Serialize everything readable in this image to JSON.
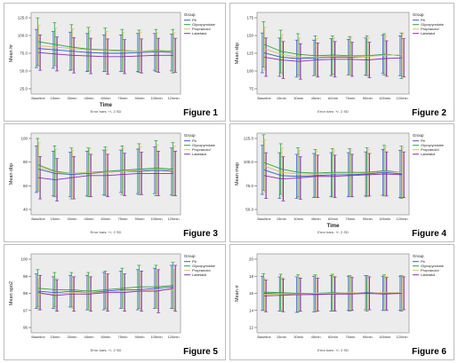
{
  "colors": {
    "plot_bg": "#ececec",
    "series": [
      "#3a5bc7",
      "#2f9e3a",
      "#d0c070",
      "#8a2fae"
    ],
    "errbar": "#7a2b9a"
  },
  "chart_data": [
    {
      "type": "line",
      "figure_label": "Figure 1",
      "ylabel": "Mean hr",
      "xlabel": "Time",
      "footer": "Error bars: +/- 2 SD",
      "legend_title": "Group",
      "legend": [
        "Pb",
        "Glycopyrrolate",
        "Propranolol",
        "Labetalol"
      ],
      "legend_placement": "right",
      "yticks": [
        "125.0",
        "100.0",
        "75.0",
        "50.0",
        "25.0"
      ],
      "ylim": [
        15,
        135
      ],
      "categories": [
        "Baseline",
        "15min",
        "30min",
        "45min",
        "60min",
        "75min",
        "90min",
        "105min",
        "120min"
      ],
      "series": [
        {
          "name": "Pb",
          "values": [
            82,
            80,
            78,
            76,
            75,
            75,
            76,
            77,
            76
          ],
          "err": [
            28,
            27,
            28,
            28,
            27,
            27,
            28,
            27,
            27
          ]
        },
        {
          "name": "Glycopyrrolate",
          "values": [
            92,
            88,
            84,
            81,
            80,
            79,
            78,
            79,
            78
          ],
          "err": [
            35,
            32,
            33,
            32,
            32,
            31,
            31,
            31,
            32
          ]
        },
        {
          "name": "Propranolol",
          "values": [
            86,
            84,
            82,
            80,
            79,
            78,
            78,
            78,
            77
          ],
          "err": [
            30,
            28,
            29,
            28,
            28,
            28,
            28,
            27,
            28
          ]
        },
        {
          "name": "Labetalol",
          "values": [
            76,
            74,
            72,
            71,
            70,
            70,
            71,
            72,
            72
          ],
          "err": [
            26,
            25,
            26,
            26,
            26,
            25,
            25,
            25,
            25
          ]
        }
      ]
    },
    {
      "type": "line",
      "figure_label": "Figure 2",
      "ylabel": "Mean sbp",
      "xlabel": "",
      "footer": "Error bars: +/- 2 SD",
      "legend_title": "Group",
      "legend": [
        "Pb",
        "Glycopyrrolate",
        "Propranolol",
        "Labetalol"
      ],
      "legend_placement": "right",
      "yticks": [
        "175",
        "150",
        "125",
        "100",
        "75"
      ],
      "ylim": [
        70,
        185
      ],
      "categories": [
        "Baseline",
        "15min",
        "30min",
        "45min",
        "60min",
        "75min",
        "90min",
        "105min",
        "120min"
      ],
      "series": [
        {
          "name": "Pb",
          "values": [
            128,
            122,
            120,
            121,
            122,
            122,
            123,
            126,
            124
          ],
          "err": [
            28,
            27,
            26,
            25,
            26,
            25,
            26,
            27,
            28
          ]
        },
        {
          "name": "Glycopyrrolate",
          "values": [
            140,
            130,
            126,
            124,
            125,
            124,
            124,
            126,
            124
          ],
          "err": [
            32,
            30,
            29,
            28,
            27,
            27,
            28,
            29,
            32
          ]
        },
        {
          "name": "Propranolol",
          "values": [
            134,
            126,
            122,
            122,
            123,
            123,
            123,
            125,
            125
          ],
          "err": [
            30,
            28,
            27,
            26,
            26,
            26,
            26,
            27,
            30
          ]
        },
        {
          "name": "Labetalol",
          "values": [
            122,
            118,
            116,
            118,
            119,
            119,
            118,
            120,
            121
          ],
          "err": [
            27,
            26,
            25,
            24,
            25,
            24,
            25,
            25,
            27
          ]
        }
      ]
    },
    {
      "type": "line",
      "figure_label": "Figure 3",
      "ylabel": "Mean dbp",
      "xlabel": "",
      "footer": "Error bars: +/- 2 SD",
      "legend_title": "Group",
      "legend": [
        "Pb",
        "Glycopyrrolate",
        "Propranolol",
        "Labetalol"
      ],
      "legend_placement": "right",
      "yticks": [
        "100",
        "80",
        "60",
        "40"
      ],
      "ylim": [
        35,
        112
      ],
      "categories": [
        "Baseline",
        "15min",
        "30min",
        "45min",
        "60min",
        "75min",
        "90min",
        "105min",
        "120min"
      ],
      "series": [
        {
          "name": "Pb",
          "values": [
            78,
            74,
            73,
            74,
            75,
            76,
            76,
            77,
            76
          ],
          "err": [
            22,
            21,
            21,
            21,
            21,
            20,
            21,
            22,
            22
          ]
        },
        {
          "name": "Glycopyrrolate",
          "values": [
            82,
            76,
            74,
            75,
            76,
            77,
            78,
            79,
            78
          ],
          "err": [
            25,
            24,
            24,
            23,
            23,
            23,
            24,
            26,
            25
          ]
        },
        {
          "name": "Propranolol",
          "values": [
            80,
            75,
            74,
            75,
            75,
            76,
            77,
            78,
            77
          ],
          "err": [
            23,
            22,
            22,
            22,
            22,
            22,
            22,
            23,
            23
          ]
        },
        {
          "name": "Labetalol",
          "values": [
            70,
            68,
            70,
            72,
            72,
            73,
            74,
            74,
            74
          ],
          "err": [
            20,
            20,
            20,
            20,
            20,
            20,
            20,
            21,
            21
          ]
        }
      ]
    },
    {
      "type": "line",
      "figure_label": "Figure 4",
      "ylabel": "Mean map",
      "xlabel": "Time",
      "footer": "Error bars: +/- 2 SD",
      "legend_title": "Group",
      "legend": [
        "Pb",
        "Glycopyrrolate",
        "Propranolol",
        "Labetalol"
      ],
      "legend_placement": "right",
      "yticks": [
        "125.0",
        "100.0",
        "75.0",
        "50.0"
      ],
      "ylim": [
        40,
        140
      ],
      "categories": [
        "Baseline",
        "15min",
        "30min",
        "45min",
        "60min",
        "75min",
        "90min",
        "105min",
        "120min"
      ],
      "series": [
        {
          "name": "Pb",
          "values": [
            95,
            88,
            87,
            88,
            89,
            89,
            90,
            92,
            90
          ],
          "err": [
            30,
            28,
            27,
            27,
            27,
            27,
            27,
            28,
            29
          ]
        },
        {
          "name": "Glycopyrrolate",
          "values": [
            104,
            96,
            92,
            91,
            92,
            92,
            92,
            94,
            92
          ],
          "err": [
            34,
            31,
            30,
            29,
            29,
            29,
            30,
            31,
            32
          ]
        },
        {
          "name": "Propranolol",
          "values": [
            100,
            92,
            90,
            90,
            91,
            91,
            91,
            93,
            92
          ],
          "err": [
            32,
            30,
            29,
            28,
            28,
            28,
            29,
            30,
            30
          ]
        },
        {
          "name": "Labetalol",
          "values": [
            88,
            84,
            85,
            87,
            87,
            88,
            89,
            90,
            89
          ],
          "err": [
            28,
            27,
            26,
            26,
            26,
            26,
            26,
            27,
            28
          ]
        }
      ]
    },
    {
      "type": "line",
      "figure_label": "Figure 5",
      "ylabel": "Mean spo2",
      "xlabel": "",
      "footer": "Error bars: +/- 2 SD",
      "legend_title": "Group",
      "legend": [
        "Pb",
        "Glycopyrrolate",
        "Propranolol",
        "Labetalol"
      ],
      "legend_placement": "right",
      "yticks": [
        "100",
        "99",
        "98",
        "97",
        "96"
      ],
      "ylim": [
        95.5,
        101
      ],
      "categories": [
        "Baseline",
        "15min",
        "30min",
        "45min",
        "60min",
        "75min",
        "90min",
        "105min",
        "120min"
      ],
      "series": [
        {
          "name": "Pb",
          "values": [
            98.4,
            98.3,
            98.4,
            98.3,
            98.4,
            98.5,
            98.5,
            98.6,
            98.7
          ],
          "err": [
            1.2,
            1.1,
            1.1,
            1.2,
            1.3,
            1.3,
            1.4,
            1.4,
            1.5
          ]
        },
        {
          "name": "Glycopyrrolate",
          "values": [
            98.6,
            98.5,
            98.5,
            98.4,
            98.5,
            98.6,
            98.7,
            98.7,
            98.8
          ],
          "err": [
            1.3,
            1.2,
            1.2,
            1.3,
            1.3,
            1.4,
            1.5,
            1.5,
            1.6
          ]
        },
        {
          "name": "Propranolol",
          "values": [
            98.2,
            98.2,
            98.3,
            98.3,
            98.3,
            98.4,
            98.4,
            98.5,
            98.5
          ],
          "err": [
            1.1,
            1.1,
            1.1,
            1.1,
            1.2,
            1.2,
            1.3,
            1.3,
            1.4
          ]
        },
        {
          "name": "Labetalol",
          "values": [
            98.3,
            98.1,
            98.2,
            98.2,
            98.3,
            98.3,
            98.4,
            98.4,
            98.6
          ],
          "err": [
            1.2,
            1.1,
            1.2,
            1.2,
            1.3,
            1.3,
            1.4,
            1.5,
            1.6
          ]
        }
      ]
    },
    {
      "type": "line",
      "figure_label": "Figure 6",
      "ylabel": "Mean rr",
      "xlabel": "",
      "footer": "Error bars: +/- 2 SD",
      "legend_title": "Group",
      "legend": [
        "Pb",
        "Glycopyrrolate",
        "Propranolol",
        "Labetalol"
      ],
      "legend_placement": "right",
      "yticks": [
        "20",
        "18",
        "16",
        "14",
        "12"
      ],
      "ylim": [
        10,
        22
      ],
      "categories": [
        "Baseline",
        "15min",
        "30min",
        "45min",
        "60min",
        "75min",
        "90min",
        "105min",
        "120min"
      ],
      "series": [
        {
          "name": "Pb",
          "values": [
            16.0,
            15.9,
            15.8,
            15.9,
            16.0,
            16.0,
            16.1,
            16.0,
            16.0
          ],
          "err": [
            2.6,
            2.6,
            2.7,
            2.7,
            2.7,
            2.6,
            2.6,
            2.6,
            2.6
          ]
        },
        {
          "name": "Glycopyrrolate",
          "values": [
            16.2,
            16.1,
            16.0,
            16.0,
            16.1,
            16.0,
            16.0,
            16.1,
            16.0
          ],
          "err": [
            2.8,
            2.8,
            2.8,
            2.8,
            2.8,
            2.7,
            2.7,
            2.7,
            2.7
          ]
        },
        {
          "name": "Propranolol",
          "values": [
            15.8,
            15.9,
            15.9,
            16.0,
            16.0,
            16.1,
            16.0,
            16.1,
            16.1
          ],
          "err": [
            2.5,
            2.5,
            2.6,
            2.6,
            2.6,
            2.5,
            2.5,
            2.5,
            2.5
          ]
        },
        {
          "name": "Labetalol",
          "values": [
            15.6,
            15.7,
            15.8,
            15.8,
            15.9,
            15.9,
            16.0,
            15.9,
            16.0
          ],
          "err": [
            2.4,
            2.5,
            2.5,
            2.5,
            2.6,
            2.5,
            2.5,
            2.5,
            2.5
          ]
        }
      ]
    }
  ]
}
